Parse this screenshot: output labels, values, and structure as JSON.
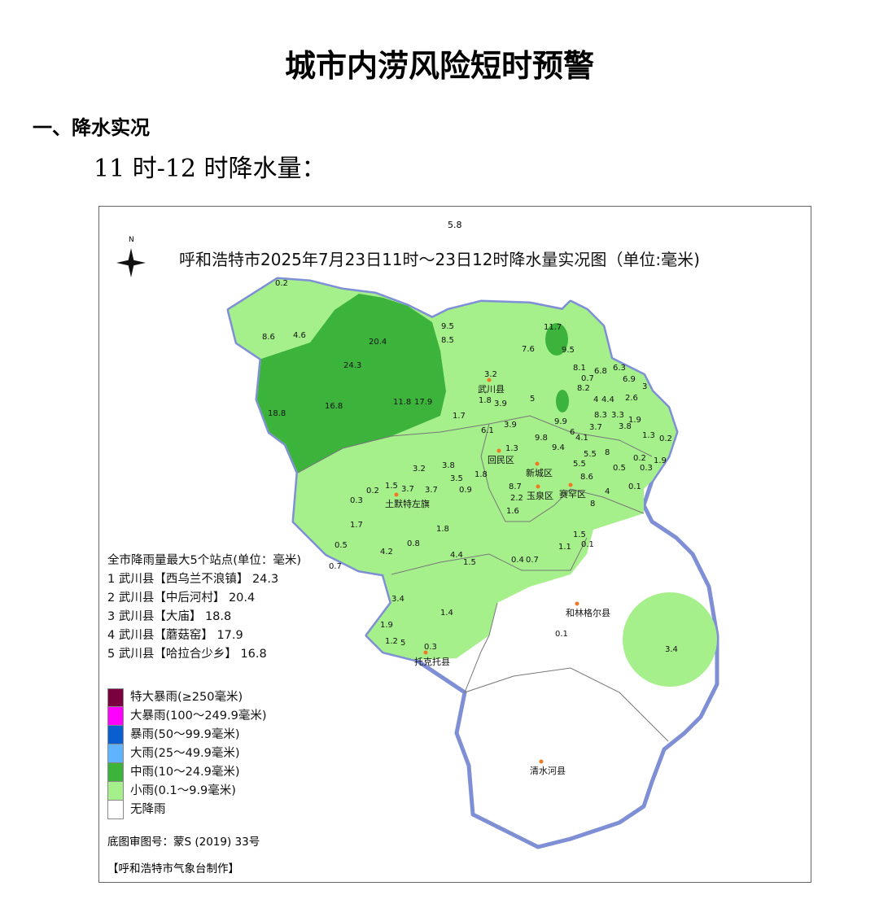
{
  "doc": {
    "title": "城市内涝风险短时预警",
    "section": "一、降水实况",
    "subtitle": "11 时-12 时降水量："
  },
  "map": {
    "title": "呼和浩特市2025年7月23日11时～23日12时降水量实况图（单位:毫米)",
    "top_value": "5.8",
    "north_label": "N",
    "top5_title": "全市降雨量最大5个站点(单位：毫米)",
    "top5": [
      "1 武川县【西乌兰不浪镇】 24.3",
      "2 武川县【中后河村】 20.4",
      "3 武川县【大庙】 18.8",
      "4 武川县【蘑菇窑】 17.9",
      "5 武川县【哈拉合少乡】 16.8"
    ],
    "legend": [
      {
        "label": "特大暴雨(≥250毫米)",
        "color": "#7a0040"
      },
      {
        "label": "大暴雨(100～249.9毫米)",
        "color": "#ff00ff"
      },
      {
        "label": "暴雨(50～99.9毫米)",
        "color": "#0a5fd0"
      },
      {
        "label": "大雨(25～49.9毫米)",
        "color": "#5fb4ff"
      },
      {
        "label": "中雨(10～24.9毫米)",
        "color": "#3cb43c"
      },
      {
        "label": "小雨(0.1～9.9毫米)",
        "color": "#a6f08c"
      },
      {
        "label": "无降雨",
        "color": "#ffffff"
      }
    ],
    "basemap_note": "底图审图号：蒙S (2019) 33号",
    "maker": "【呼和浩特市气象台制作】",
    "counties": [
      "武川县",
      "土默特左旗",
      "回民区",
      "新城区",
      "赛罕区",
      "玉泉区",
      "和林格尔县",
      "托克托县",
      "清水河县"
    ],
    "values": [
      "0.2",
      "8.6",
      "4.6",
      "20.4",
      "24.3",
      "18.8",
      "16.8",
      "11.8",
      "17.9",
      "9.5",
      "8.5",
      "11.7",
      "7.6",
      "9.5",
      "3.2",
      "1.8",
      "3.9",
      "5",
      "1.7",
      "6.1",
      "3.9",
      "8.1",
      "0.7",
      "8.2",
      "6.8",
      "6.3",
      "6.9",
      "3",
      "2.6",
      "4",
      "1.9",
      "8.3",
      "3.3",
      "3.7",
      "3.8",
      "4.4",
      "1.9",
      "1.3",
      "0.2",
      "4.1",
      "6",
      "9.9",
      "8",
      "0.2",
      "0.3",
      "0.5",
      "8.6",
      "0.1",
      "4",
      "8",
      "5.5",
      "3.2",
      "3.8",
      "3.5",
      "1.8",
      "1.5",
      "3.7",
      "3.7",
      "0.2",
      "0.3",
      "0.9",
      "1.7",
      "1.8",
      "8.7",
      "2.2",
      "1.6",
      "0.5",
      "0.7",
      "4.2",
      "0.8",
      "4.4",
      "1.5",
      "0.4",
      "0.7",
      "1.1",
      "0.1",
      "1.5",
      "3.4",
      "1.4",
      "1.9",
      "1.2",
      "5",
      "0.3",
      "0.1",
      "3.4",
      "9.8",
      "9.4",
      "1.3",
      "5.5"
    ]
  }
}
